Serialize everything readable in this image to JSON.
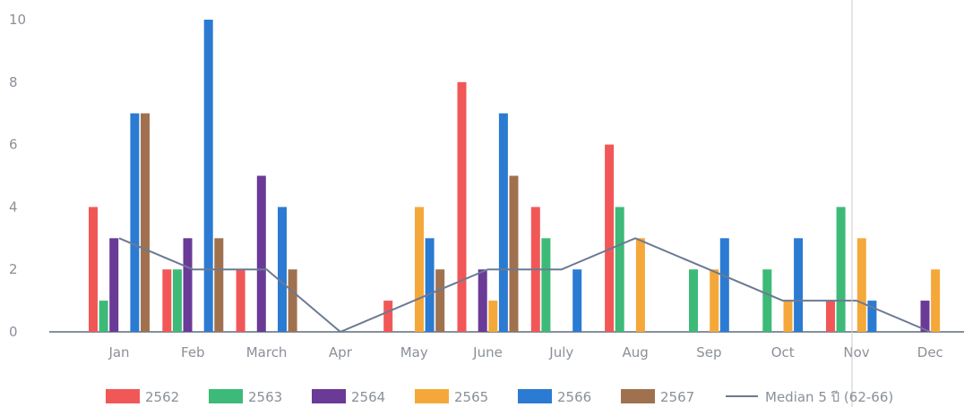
{
  "chart_data": {
    "type": "bar",
    "categories": [
      "Jan",
      "Feb",
      "March",
      "Apr",
      "May",
      "June",
      "July",
      "Aug",
      "Sep",
      "Oct",
      "Nov",
      "Dec"
    ],
    "y_ticks": [
      "0",
      "2",
      "4",
      "6",
      "8",
      "10"
    ],
    "ylim": [
      0,
      10
    ],
    "grid": false,
    "legend_position": "bottom",
    "series": [
      {
        "name": "2562",
        "color": "#f25757",
        "values": [
          4,
          2,
          2,
          0,
          1,
          8,
          4,
          6,
          0,
          0,
          1,
          0
        ]
      },
      {
        "name": "2563",
        "color": "#3dba78",
        "values": [
          1,
          2,
          0,
          0,
          0,
          0,
          3,
          4,
          2,
          2,
          4,
          0
        ]
      },
      {
        "name": "2564",
        "color": "#6a3a97",
        "values": [
          3,
          3,
          5,
          0,
          0,
          2,
          0,
          0,
          0,
          0,
          0,
          1
        ]
      },
      {
        "name": "2565",
        "color": "#f5a83a",
        "values": [
          0,
          0,
          0,
          0,
          4,
          1,
          0,
          3,
          2,
          1,
          3,
          2
        ]
      },
      {
        "name": "2566",
        "color": "#2b7bd2",
        "values": [
          7,
          10,
          4,
          0,
          3,
          7,
          2,
          0,
          3,
          3,
          1,
          0
        ]
      },
      {
        "name": "2567",
        "color": "#a0714f",
        "values": [
          7,
          3,
          2,
          0,
          2,
          5,
          0,
          0,
          0,
          0,
          0,
          0
        ]
      }
    ],
    "line_series": {
      "name": "Median 5 ปี (62-66)",
      "color": "#6b7a93",
      "values": [
        3,
        2,
        2,
        0,
        1,
        2,
        2,
        3,
        2,
        1,
        1,
        0
      ]
    }
  }
}
